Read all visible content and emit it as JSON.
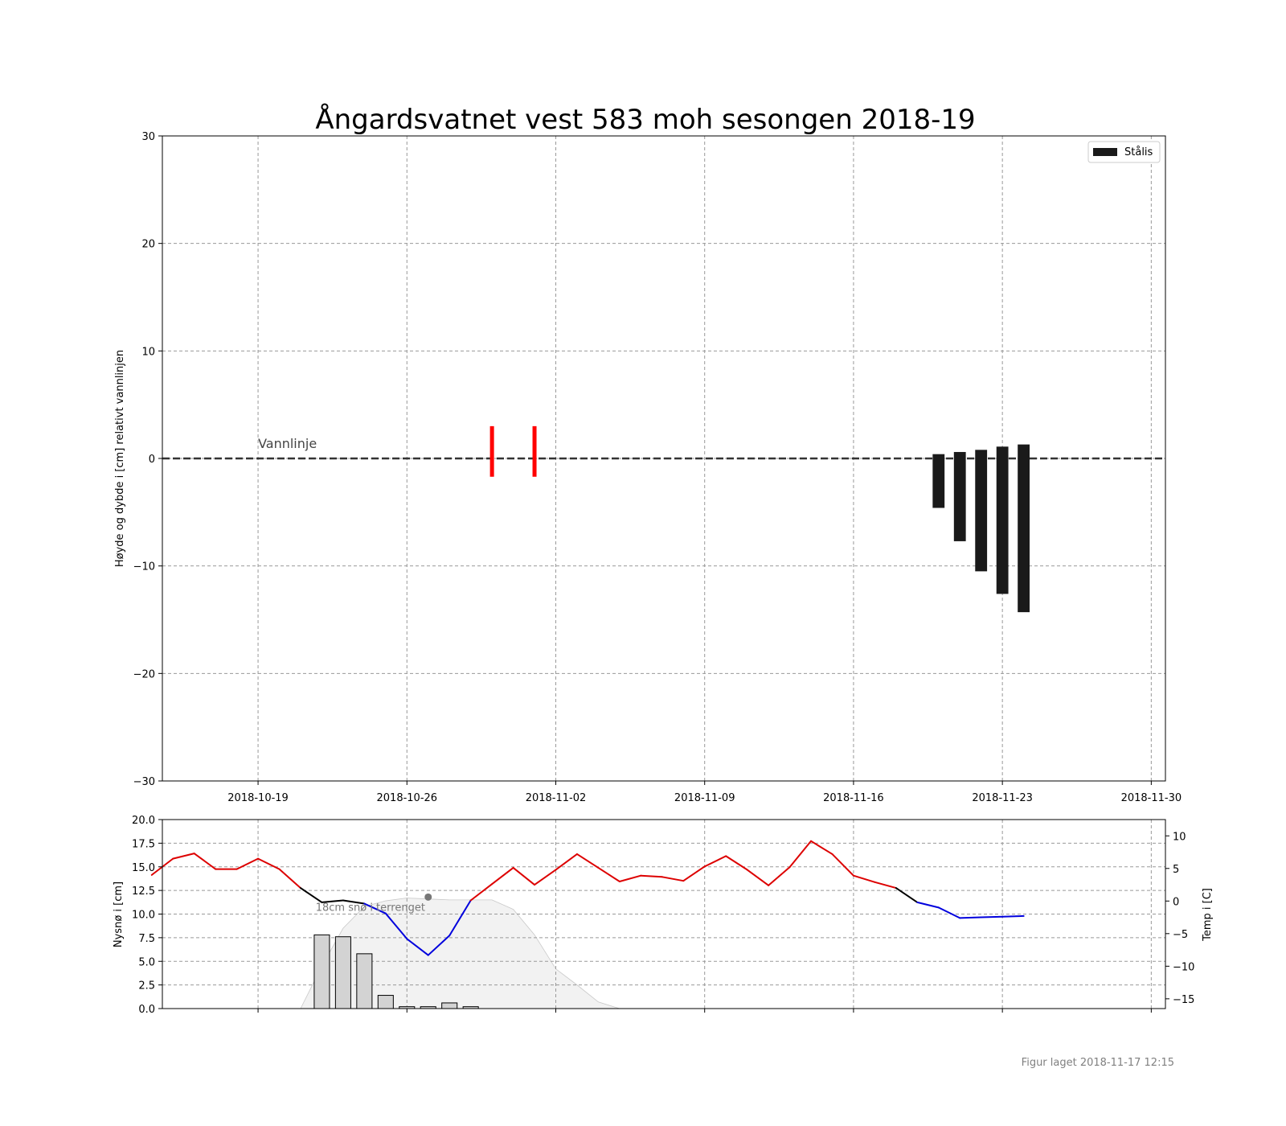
{
  "chart_data": [
    {
      "type": "bar",
      "title": "Ångardsvatnet vest 583 moh sesongen 2018-19",
      "xlabel": "",
      "ylabel": "Høyde og dybde i [cm] relativt vannlinjen",
      "x_type": "date",
      "xlim": [
        "2018-10-14T12:00",
        "2018-11-30T16:00"
      ],
      "x_ticks": [
        "2018-10-19",
        "2018-10-26",
        "2018-11-02",
        "2018-11-09",
        "2018-11-16",
        "2018-11-23",
        "2018-11-30"
      ],
      "ylim": [
        -30,
        30
      ],
      "y_ticks": [
        -30,
        -20,
        -10,
        0,
        10,
        20,
        30
      ],
      "grid": true,
      "legend": {
        "position": "top-right",
        "entries": [
          {
            "label": "Stålis",
            "color": "#1a1a1a"
          }
        ]
      },
      "waterline": {
        "y": 0,
        "label": "Vannlinje"
      },
      "markers": {
        "color": "#ff0000",
        "dates": [
          "2018-10-30",
          "2018-11-01"
        ],
        "top": 3,
        "bottom": -1.7
      },
      "series": [
        {
          "name": "Stålis",
          "color": "#1a1a1a",
          "bars": [
            {
              "date": "2018-11-20",
              "top": 0.4,
              "bottom": -4.6
            },
            {
              "date": "2018-11-21",
              "top": 0.6,
              "bottom": -7.7
            },
            {
              "date": "2018-11-22",
              "top": 0.8,
              "bottom": -10.5
            },
            {
              "date": "2018-11-23",
              "top": 1.1,
              "bottom": -12.6
            },
            {
              "date": "2018-11-24",
              "top": 1.3,
              "bottom": -14.3
            }
          ]
        }
      ]
    },
    {
      "type": "bar",
      "ylabel": "Nysnø i [cm]",
      "y2label": "Temp i [C]",
      "x_type": "date",
      "xlim": [
        "2018-10-14T12:00",
        "2018-11-30T16:00"
      ],
      "ylim": [
        0,
        20
      ],
      "y_ticks": [
        "0.0",
        "2.5",
        "5.0",
        "7.5",
        "10.0",
        "12.5",
        "15.0",
        "17.5",
        "20.0"
      ],
      "y2lim": [
        -16.5,
        12.5
      ],
      "y2_ticks": [
        10,
        5,
        0,
        -5,
        -10,
        -15
      ],
      "grid": true,
      "annotation": {
        "text": "18cm snø i terrenget",
        "date": "2018-10-27",
        "value": 11.8
      },
      "new_snow": [
        {
          "date": "2018-10-22",
          "value": 7.8
        },
        {
          "date": "2018-10-23",
          "value": 7.6
        },
        {
          "date": "2018-10-24",
          "value": 5.8
        },
        {
          "date": "2018-10-25",
          "value": 1.4
        },
        {
          "date": "2018-10-26",
          "value": 0.2
        },
        {
          "date": "2018-10-27",
          "value": 0.2
        },
        {
          "date": "2018-10-28",
          "value": 0.6
        },
        {
          "date": "2018-10-29",
          "value": 0.2
        }
      ],
      "snow_depth_area": {
        "color": "#f2f2f2",
        "dates": [
          "2018-10-21",
          "2018-10-22",
          "2018-10-23",
          "2018-10-24",
          "2018-10-25",
          "2018-10-26",
          "2018-10-27",
          "2018-10-28",
          "2018-10-29",
          "2018-10-30",
          "2018-10-31",
          "2018-11-01",
          "2018-11-02",
          "2018-11-03",
          "2018-11-04",
          "2018-11-05"
        ],
        "values": [
          0,
          4.5,
          8.5,
          10.8,
          11.4,
          11.7,
          11.6,
          11.5,
          11.5,
          11.5,
          10.5,
          7.8,
          4.2,
          2.5,
          0.7,
          0
        ]
      },
      "temperature": {
        "dates": [
          "2018-10-14",
          "2018-10-15",
          "2018-10-16",
          "2018-10-17",
          "2018-10-18",
          "2018-10-19",
          "2018-10-20",
          "2018-10-21",
          "2018-10-22",
          "2018-10-23",
          "2018-10-24",
          "2018-10-25",
          "2018-10-26",
          "2018-10-27",
          "2018-10-28",
          "2018-10-29",
          "2018-10-30",
          "2018-10-31",
          "2018-11-01",
          "2018-11-02",
          "2018-11-03",
          "2018-11-04",
          "2018-11-05",
          "2018-11-06",
          "2018-11-07",
          "2018-11-08",
          "2018-11-09",
          "2018-11-10",
          "2018-11-11",
          "2018-11-12",
          "2018-11-13",
          "2018-11-14",
          "2018-11-15",
          "2018-11-16",
          "2018-11-17",
          "2018-11-18",
          "2018-11-19",
          "2018-11-20",
          "2018-11-21",
          "2018-11-22",
          "2018-11-23",
          "2018-11-24"
        ],
        "values": [
          4,
          6.5,
          7.3,
          4.9,
          4.9,
          6.5,
          4.9,
          2,
          -0.2,
          0.1,
          -0.4,
          -1.9,
          -5.8,
          -8.3,
          -5.3,
          0.1,
          2.6,
          5.1,
          2.5,
          4.8,
          7.2,
          5.1,
          3,
          3.9,
          3.7,
          3.1,
          5.3,
          6.9,
          4.8,
          2.4,
          5.2,
          9.2,
          7.2,
          3.9,
          2.9,
          2,
          -0.2,
          -1,
          -2.6,
          -2.5,
          -2.4,
          -2.3
        ],
        "colors": {
          "warm": "#dd0000",
          "near_zero": "#000000",
          "cold": "#0000dd"
        }
      }
    }
  ],
  "footer": {
    "created": "Figur laget 2018-11-17 12:15"
  }
}
